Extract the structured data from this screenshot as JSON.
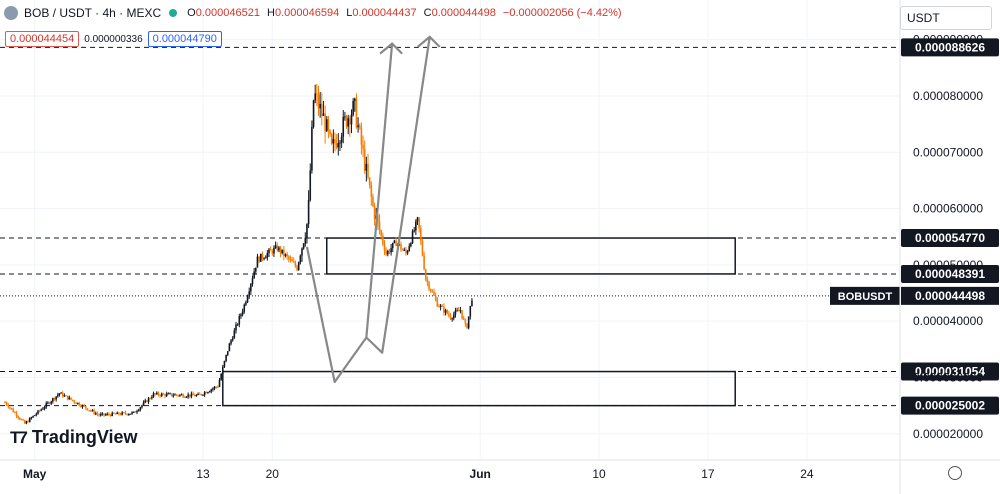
{
  "header": {
    "symbol": "BOB / USDT · 4h · MEXC",
    "open_label": "O",
    "open": "0.000046521",
    "high_label": "H",
    "high": "0.000046594",
    "low_label": "L",
    "low": "0.000044437",
    "close_label": "C",
    "close": "0.000044498",
    "change": "−0.000002056 (−4.42%)"
  },
  "prices": {
    "bid": "0.000044454",
    "spread": "0.000000336",
    "ask": "0.000044790"
  },
  "currency_button": "USDT",
  "brand": "TradingView",
  "colors": {
    "up": "#131722",
    "down": "#f57c00",
    "accent": "#2962ff",
    "negative": "#d1352b",
    "live_dot": "#22ab94"
  },
  "chart_data": {
    "type": "candlestick",
    "y_scale": "linear",
    "ylim": [
      1.8e-05,
      9.05e-05
    ],
    "y_ticks": [
      "0.000020000",
      "0.000030000",
      "0.000040000",
      "0.000050000",
      "0.000060000",
      "0.000070000",
      "0.000080000",
      "0.000090000"
    ],
    "x_ticks": [
      "May",
      "13",
      "20",
      "Jun",
      "10",
      "17",
      "24"
    ],
    "price_levels": [
      {
        "value": 8.8626e-05,
        "label": "0.000088626"
      },
      {
        "value": 5.477e-05,
        "label": "0.000054770"
      },
      {
        "value": 4.8391e-05,
        "label": "0.000048391"
      },
      {
        "value": 3.1054e-05,
        "label": "0.000031054"
      },
      {
        "value": 2.5002e-05,
        "label": "0.000025002"
      }
    ],
    "current_price": {
      "symbol": "BOBUSDT",
      "value": 4.4498e-05,
      "label": "0.000044498"
    },
    "zones": [
      {
        "from_day": 32.5,
        "to_day": 58,
        "low": 4.8391e-05,
        "high": 5.477e-05
      },
      {
        "from_day": 22,
        "to_day": 58,
        "low": 2.5002e-05,
        "high": 3.1054e-05
      }
    ],
    "projection_paths": [
      [
        [
          30.5,
          5.32e-05
        ],
        [
          33.3,
          2.92e-05
        ],
        [
          36.5,
          3.71e-05
        ],
        [
          39.1,
          8.93e-05
        ]
      ],
      [
        [
          36.5,
          3.71e-05
        ],
        [
          38.1,
          3.44e-05
        ],
        [
          42.9,
          9.05e-05
        ]
      ]
    ],
    "key_points": [
      {
        "day": 0,
        "value": 2.56e-05
      },
      {
        "day": 2,
        "value": 2.18e-05
      },
      {
        "day": 5.5,
        "value": 2.72e-05
      },
      {
        "day": 9.5,
        "value": 2.33e-05
      },
      {
        "day": 13,
        "value": 2.37e-05
      },
      {
        "day": 15,
        "value": 2.7e-05
      },
      {
        "day": 19.5,
        "value": 2.68e-05
      },
      {
        "day": 21.5,
        "value": 2.85e-05
      },
      {
        "day": 22.6,
        "value": 3.55e-05
      },
      {
        "day": 24.2,
        "value": 4.3e-05
      },
      {
        "day": 25.5,
        "value": 5.1e-05
      },
      {
        "day": 27.5,
        "value": 5.3e-05
      },
      {
        "day": 29.5,
        "value": 4.95e-05
      },
      {
        "day": 30.6,
        "value": 5.8e-05
      },
      {
        "day": 31.2,
        "value": 8.05e-05
      },
      {
        "day": 32.3,
        "value": 7.55e-05
      },
      {
        "day": 33.0,
        "value": 7.05e-05
      },
      {
        "day": 34.5,
        "value": 7.6e-05
      },
      {
        "day": 35.3,
        "value": 7.8e-05
      },
      {
        "day": 36.5,
        "value": 6.65e-05
      },
      {
        "day": 37.2,
        "value": 6e-05
      },
      {
        "day": 38.5,
        "value": 5.2e-05
      },
      {
        "day": 39.5,
        "value": 5.4e-05
      },
      {
        "day": 40.5,
        "value": 5.2e-05
      },
      {
        "day": 41.7,
        "value": 5.8e-05
      },
      {
        "day": 42.5,
        "value": 4.75e-05
      },
      {
        "day": 43.7,
        "value": 4.3e-05
      },
      {
        "day": 45.0,
        "value": 4.08e-05
      },
      {
        "day": 46.0,
        "value": 4.2e-05
      },
      {
        "day": 46.6,
        "value": 3.85e-05
      },
      {
        "day": 47.2,
        "value": 4.45e-05
      }
    ]
  }
}
